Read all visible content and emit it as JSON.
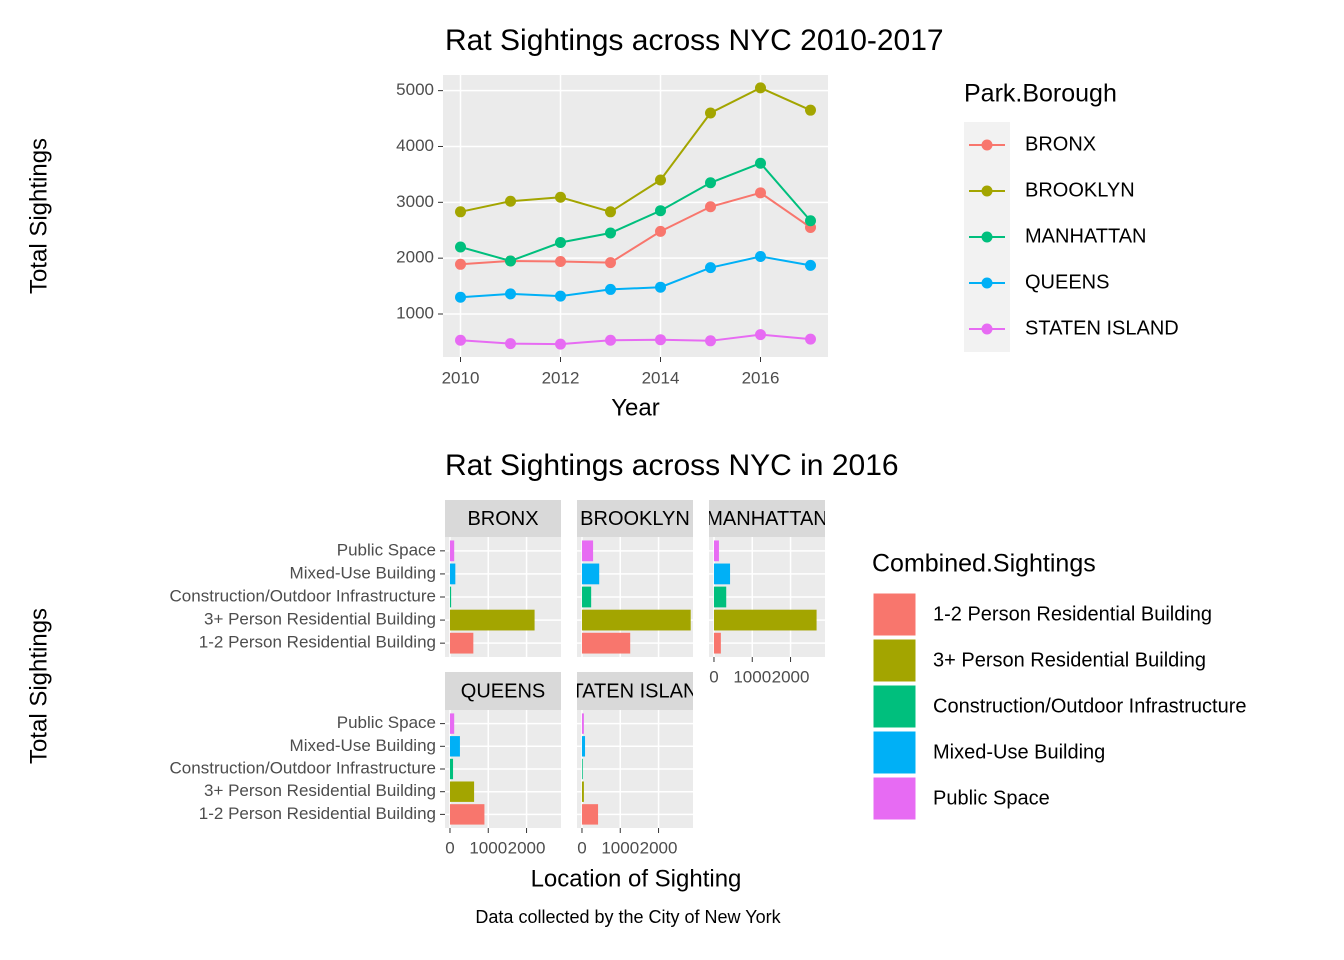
{
  "chart_data": [
    {
      "type": "line",
      "title": "Rat Sightings across NYC 2010-2017",
      "x_label": "Year",
      "y_label": "Total Sightings",
      "x": [
        2010,
        2011,
        2012,
        2013,
        2014,
        2015,
        2016,
        2017
      ],
      "xlim": [
        2009.65,
        2017.35
      ],
      "xticks": [
        2010,
        2012,
        2014,
        2016
      ],
      "ylim": [
        230,
        5280
      ],
      "yticks": [
        1000,
        2000,
        3000,
        4000,
        5000
      ],
      "grid": true,
      "legend_title": "Park.Borough",
      "series": [
        {
          "name": "BRONX",
          "color": "#F8766D",
          "values": [
            1890,
            1950,
            1940,
            1920,
            2480,
            2920,
            3170,
            2550
          ]
        },
        {
          "name": "BROOKLYN",
          "color": "#A3A500",
          "values": [
            2830,
            3020,
            3090,
            2830,
            3400,
            4600,
            5050,
            4650
          ]
        },
        {
          "name": "MANHATTAN",
          "color": "#00BF7D",
          "values": [
            2200,
            1950,
            2280,
            2450,
            2850,
            3350,
            3700,
            2670
          ]
        },
        {
          "name": "QUEENS",
          "color": "#00B0F6",
          "values": [
            1300,
            1360,
            1320,
            1440,
            1480,
            1830,
            2030,
            1870
          ]
        },
        {
          "name": "STATEN ISLAND",
          "color": "#E76BF3",
          "values": [
            530,
            470,
            460,
            530,
            540,
            520,
            630,
            550
          ]
        }
      ]
    },
    {
      "type": "bar",
      "orientation": "horizontal",
      "title": "Rat Sightings across NYC in 2016",
      "x_label": "Location of Sighting",
      "y_label": "Total Sightings",
      "caption": "Data collected by the City of New York",
      "legend_title": "Combined.Sightings",
      "categories": [
        "1-2 Person Residential Building",
        "3+ Person Residential Building",
        "Construction/Outdoor Infrastructure",
        "Mixed-Use Building",
        "Public Space"
      ],
      "colors": [
        "#F8766D",
        "#A3A500",
        "#00BF7D",
        "#00B0F6",
        "#E76BF3"
      ],
      "xlim": [
        -130,
        2900
      ],
      "xticks": [
        0,
        1000,
        2000
      ],
      "grid": true,
      "series": [
        {
          "name": "BRONX",
          "values": [
            610,
            2210,
            30,
            140,
            110
          ]
        },
        {
          "name": "BROOKLYN",
          "values": [
            1260,
            2840,
            240,
            450,
            290
          ]
        },
        {
          "name": "MANHATTAN",
          "values": [
            180,
            2680,
            320,
            420,
            130
          ]
        },
        {
          "name": "QUEENS",
          "values": [
            900,
            630,
            80,
            260,
            110
          ]
        },
        {
          "name": "STATEN ISLAND",
          "values": [
            420,
            50,
            20,
            80,
            50
          ]
        }
      ]
    }
  ]
}
